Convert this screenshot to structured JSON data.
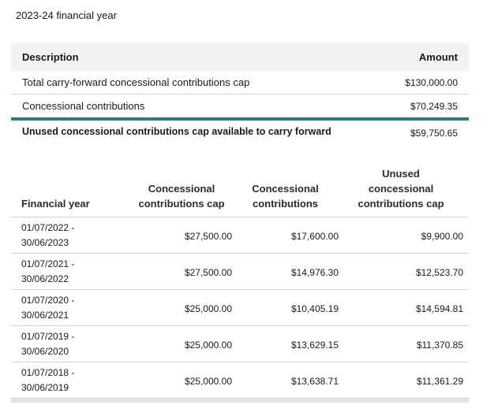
{
  "heading": "2023-24 financial year",
  "summary": {
    "col_description": "Description",
    "col_amount": "Amount",
    "rows": [
      {
        "label": "Total carry-forward concessional contributions cap",
        "amount": "$130,000.00"
      },
      {
        "label": "Concessional contributions",
        "amount": "$70,249.35"
      }
    ],
    "total_label": "Unused concessional contributions cap available to carry forward",
    "total_amount": "$59,750.65",
    "accent_color": "#2e7d7a"
  },
  "history": {
    "headers": {
      "year": "Financial year",
      "cap_line1": "Concessional",
      "cap_line2": "contributions cap",
      "contrib_line1": "Concessional",
      "contrib_line2": "contributions",
      "unused_line1": "Unused",
      "unused_line2": "concessional",
      "unused_line3": "contributions cap"
    },
    "rows": [
      {
        "start": "01/07/2022 -",
        "end": "30/06/2023",
        "cap": "$27,500.00",
        "contrib": "$17,600.00",
        "unused": "$9,900.00"
      },
      {
        "start": "01/07/2021 -",
        "end": "30/06/2022",
        "cap": "$27,500.00",
        "contrib": "$14,976.30",
        "unused": "$12,523.70"
      },
      {
        "start": "01/07/2020 -",
        "end": "30/06/2021",
        "cap": "$25,000.00",
        "contrib": "$10,405.19",
        "unused": "$14,594.81"
      },
      {
        "start": "01/07/2019 -",
        "end": "30/06/2020",
        "cap": "$25,000.00",
        "contrib": "$13,629.15",
        "unused": "$11,370.85"
      },
      {
        "start": "01/07/2018 -",
        "end": "30/06/2019",
        "cap": "$25,000.00",
        "contrib": "$13,638.71",
        "unused": "$11,361.29"
      }
    ]
  }
}
